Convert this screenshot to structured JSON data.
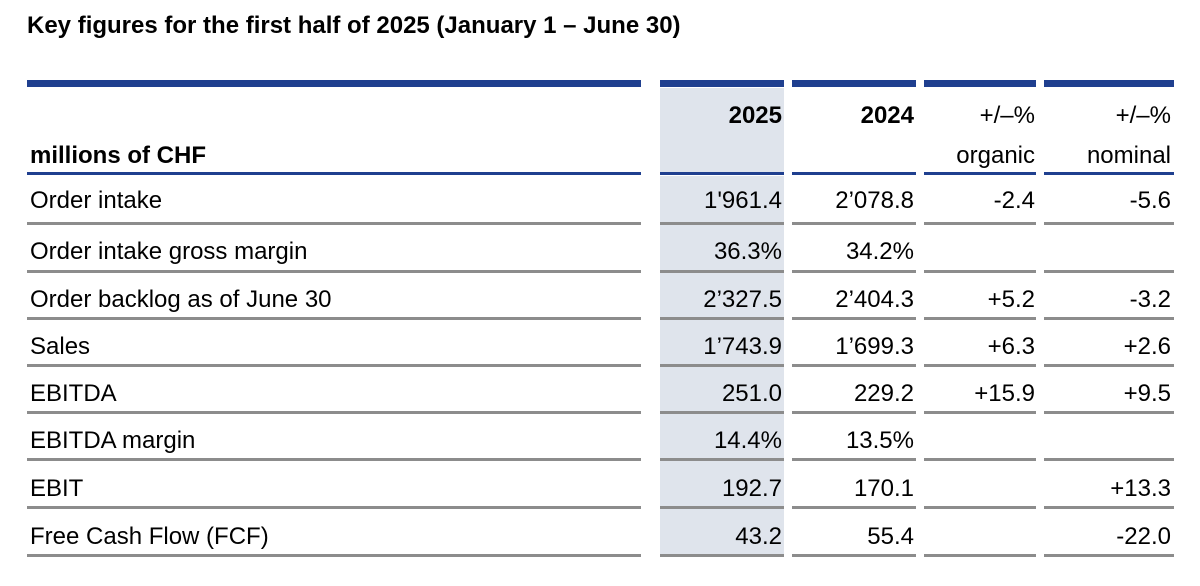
{
  "title": "Key figures for the first half of 2025 (January 1 – June 30)",
  "header": {
    "unit_label": "millions of CHF",
    "col_2025": "2025",
    "col_2024": "2024",
    "col_organic_top": "+/–%",
    "col_organic_bottom": "organic",
    "col_nominal_top": "+/–%",
    "col_nominal_bottom": "nominal"
  },
  "rows": [
    {
      "label": "Order intake",
      "v2025": "1'961.4",
      "v2024": "2’078.8",
      "organic": "-2.4",
      "nominal": "-5.6"
    },
    {
      "label": "Order intake gross margin",
      "v2025": "36.3%",
      "v2024": "34.2%",
      "organic": "",
      "nominal": ""
    },
    {
      "label": "Order backlog as of June 30",
      "v2025": "2’327.5",
      "v2024": "2’404.3",
      "organic": "+5.2",
      "nominal": "-3.2"
    },
    {
      "label": "Sales",
      "v2025": "1’743.9",
      "v2024": "1’699.3",
      "organic": "+6.3",
      "nominal": "+2.6"
    },
    {
      "label": "EBITDA",
      "v2025": "251.0",
      "v2024": "229.2",
      "organic": "+15.9",
      "nominal": "+9.5"
    },
    {
      "label": "EBITDA margin",
      "v2025": "14.4%",
      "v2024": "13.5%",
      "organic": "",
      "nominal": ""
    },
    {
      "label": "EBIT",
      "v2025": "192.7",
      "v2024": "170.1",
      "organic": "",
      "nominal": "+13.3"
    },
    {
      "label": "Free Cash Flow (FCF)",
      "v2025": "43.2",
      "v2024": "55.4",
      "organic": "",
      "nominal": "-22.0"
    }
  ],
  "colors": {
    "navy": "#1f3f8f",
    "highlight_2025": "#dfe4ec",
    "row_divider": "#8c8c8c"
  }
}
